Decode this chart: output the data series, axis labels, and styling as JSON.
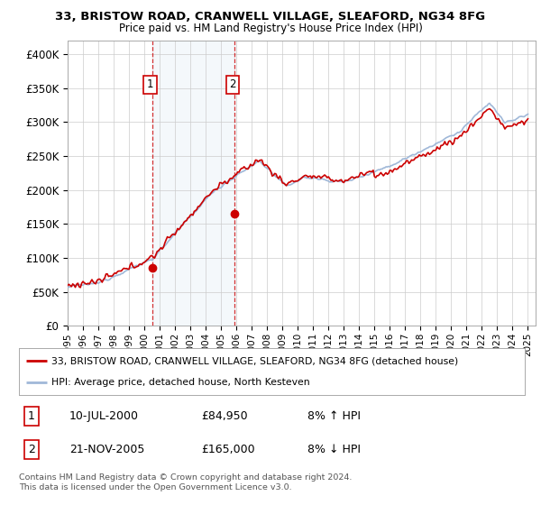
{
  "title_line1": "33, BRISTOW ROAD, CRANWELL VILLAGE, SLEAFORD, NG34 8FG",
  "title_line2": "Price paid vs. HM Land Registry's House Price Index (HPI)",
  "ylabel_ticks": [
    "£0",
    "£50K",
    "£100K",
    "£150K",
    "£200K",
    "£250K",
    "£300K",
    "£350K",
    "£400K"
  ],
  "ytick_values": [
    0,
    50000,
    100000,
    150000,
    200000,
    250000,
    300000,
    350000,
    400000
  ],
  "ylim": [
    0,
    420000
  ],
  "xlim_start": 1995.0,
  "xlim_end": 2025.5,
  "sale1_x": 2000.54,
  "sale1_y": 84950,
  "sale2_x": 2005.9,
  "sale2_y": 165000,
  "sale1_label": "1",
  "sale2_label": "2",
  "legend_line1": "33, BRISTOW ROAD, CRANWELL VILLAGE, SLEAFORD, NG34 8FG (detached house)",
  "legend_line2": "HPI: Average price, detached house, North Kesteven",
  "table_row1_num": "1",
  "table_row1_date": "10-JUL-2000",
  "table_row1_price": "£84,950",
  "table_row1_hpi": "8% ↑ HPI",
  "table_row2_num": "2",
  "table_row2_date": "21-NOV-2005",
  "table_row2_price": "£165,000",
  "table_row2_hpi": "8% ↓ HPI",
  "footer": "Contains HM Land Registry data © Crown copyright and database right 2024.\nThis data is licensed under the Open Government Licence v3.0.",
  "hpi_color": "#a0b8d8",
  "price_color": "#cc0000",
  "marker_color": "#cc0000",
  "dashed_color": "#cc0000",
  "shade_color": "#dce8f5",
  "background_color": "#ffffff",
  "grid_color": "#cccccc"
}
